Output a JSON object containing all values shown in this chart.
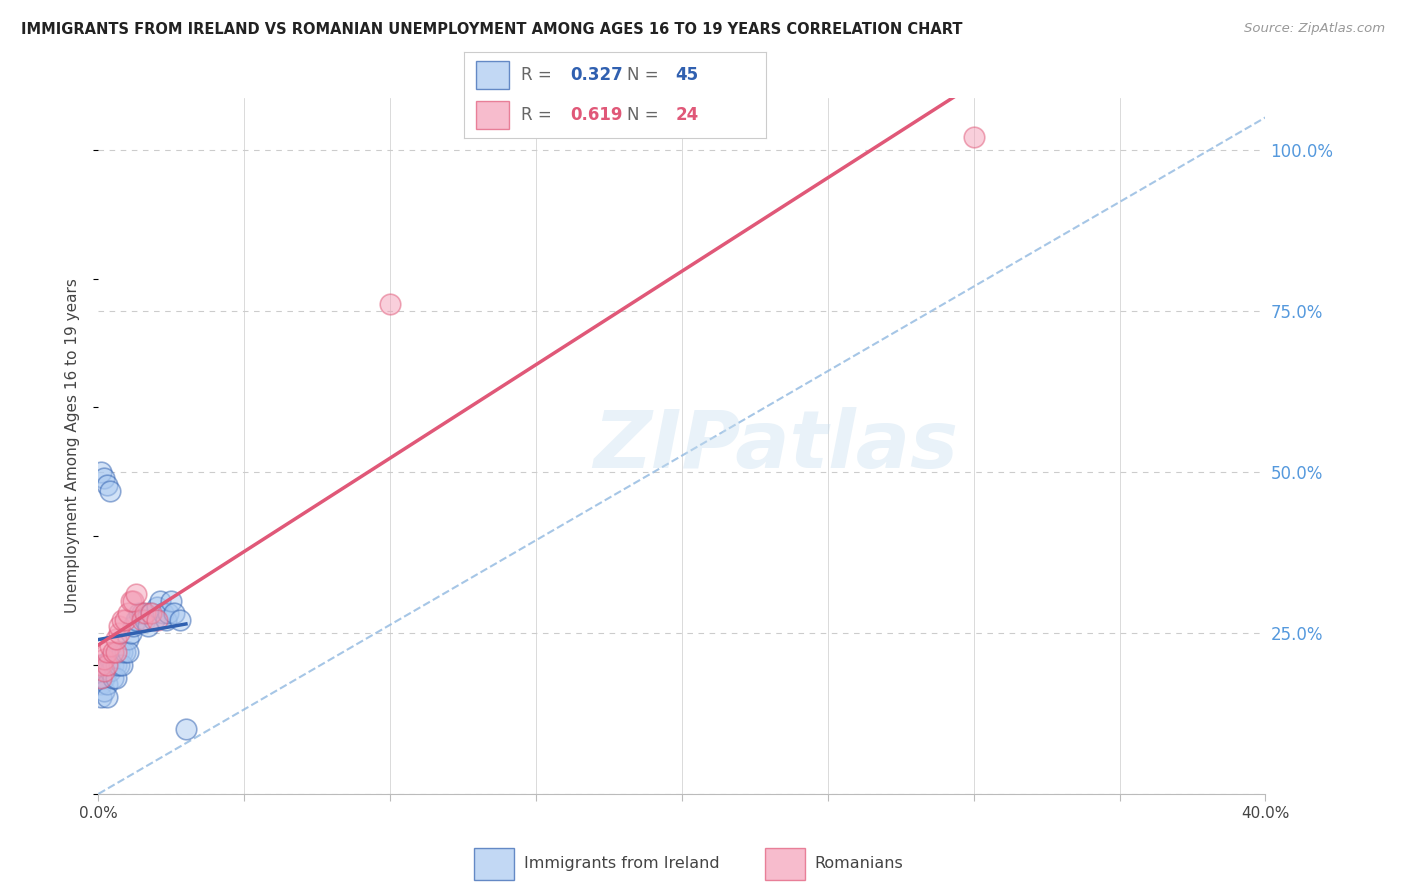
{
  "title": "IMMIGRANTS FROM IRELAND VS ROMANIAN UNEMPLOYMENT AMONG AGES 16 TO 19 YEARS CORRELATION CHART",
  "source": "Source: ZipAtlas.com",
  "ylabel": "Unemployment Among Ages 16 to 19 years",
  "xlabel_ireland": "Immigrants from Ireland",
  "xlabel_romanian": "Romanians",
  "watermark": "ZIPatlas",
  "legend_ireland_R": "0.327",
  "legend_ireland_N": "45",
  "legend_romanian_R": "0.619",
  "legend_romanian_N": "24",
  "xlim": [
    0.0,
    0.4
  ],
  "ylim": [
    0.0,
    1.08
  ],
  "color_ireland": "#a8c8f0",
  "color_romanian": "#f4a0b8",
  "color_ireland_line": "#3060b0",
  "color_romanian_line": "#e05878",
  "color_diag_line": "#90b8e0",
  "background_color": "#ffffff",
  "grid_color": "#cccccc",
  "right_axis_color": "#5599dd",
  "ireland_x": [
    0.001,
    0.001,
    0.001,
    0.001,
    0.002,
    0.002,
    0.002,
    0.003,
    0.003,
    0.003,
    0.004,
    0.004,
    0.005,
    0.005,
    0.006,
    0.006,
    0.007,
    0.007,
    0.008,
    0.008,
    0.009,
    0.01,
    0.01,
    0.011,
    0.012,
    0.013,
    0.014,
    0.015,
    0.016,
    0.017,
    0.018,
    0.019,
    0.02,
    0.021,
    0.022,
    0.023,
    0.024,
    0.025,
    0.026,
    0.028,
    0.001,
    0.002,
    0.003,
    0.004,
    0.03
  ],
  "ireland_y": [
    0.18,
    0.2,
    0.17,
    0.15,
    0.2,
    0.18,
    0.16,
    0.19,
    0.17,
    0.15,
    0.21,
    0.19,
    0.2,
    0.18,
    0.2,
    0.18,
    0.22,
    0.2,
    0.22,
    0.2,
    0.22,
    0.24,
    0.22,
    0.25,
    0.26,
    0.27,
    0.28,
    0.28,
    0.27,
    0.26,
    0.28,
    0.27,
    0.29,
    0.3,
    0.28,
    0.27,
    0.28,
    0.3,
    0.28,
    0.27,
    0.5,
    0.49,
    0.48,
    0.47,
    0.1
  ],
  "romanian_x": [
    0.001,
    0.001,
    0.002,
    0.002,
    0.003,
    0.003,
    0.004,
    0.005,
    0.006,
    0.006,
    0.007,
    0.007,
    0.008,
    0.009,
    0.01,
    0.011,
    0.012,
    0.013,
    0.015,
    0.016,
    0.018,
    0.02,
    0.3,
    0.1
  ],
  "romanian_y": [
    0.18,
    0.2,
    0.19,
    0.21,
    0.2,
    0.22,
    0.23,
    0.22,
    0.22,
    0.24,
    0.25,
    0.26,
    0.27,
    0.27,
    0.28,
    0.3,
    0.3,
    0.31,
    0.27,
    0.28,
    0.28,
    0.27,
    1.02,
    0.76
  ],
  "ytick_positions": [
    0.0,
    0.25,
    0.5,
    0.75,
    1.0
  ],
  "ytick_labels": [
    "",
    "25.0%",
    "50.0%",
    "75.0%",
    "100.0%"
  ],
  "xtick_positions": [
    0.0,
    0.05,
    0.1,
    0.15,
    0.2,
    0.25,
    0.3,
    0.35,
    0.4
  ],
  "xtick_labels": [
    "0.0%",
    "",
    "",
    "",
    "",
    "",
    "",
    "",
    "40.0%"
  ]
}
